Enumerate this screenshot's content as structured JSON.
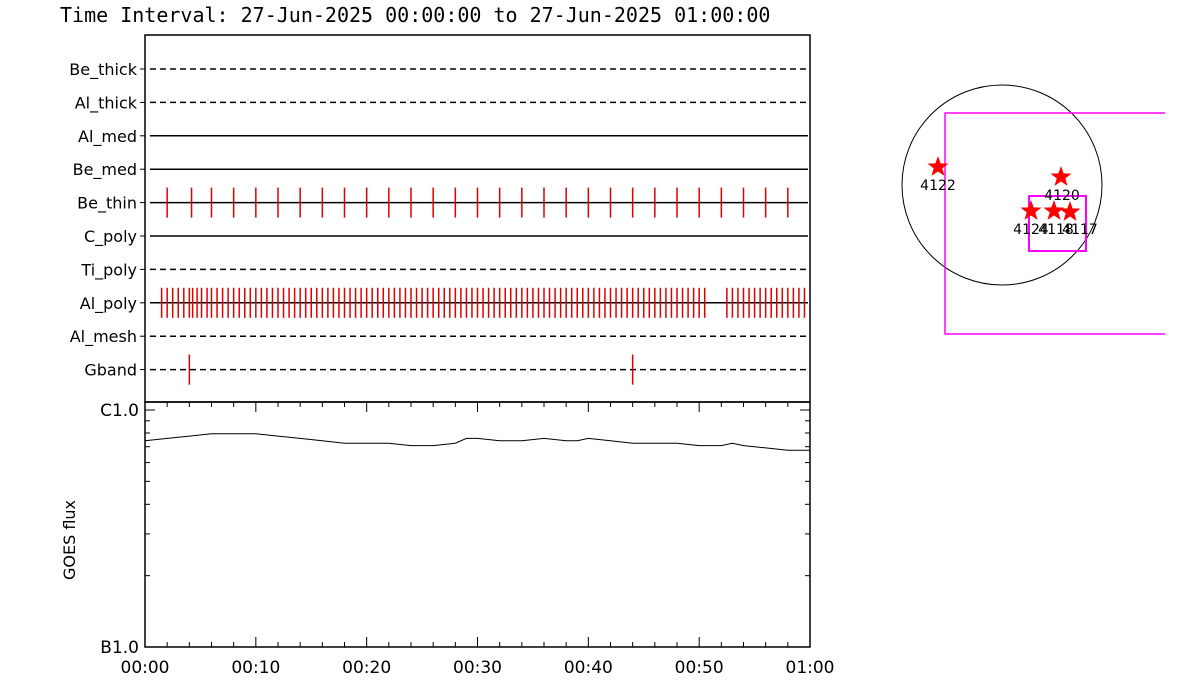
{
  "title": "Time Interval: 27-Jun-2025 00:00:00 to 27-Jun-2025 01:00:00",
  "chart_data": [
    {
      "type": "timeline",
      "x_range_minutes": [
        0,
        60
      ],
      "rows": [
        {
          "name": "Be_thick",
          "style": "dashed",
          "events_min": []
        },
        {
          "name": "Al_thick",
          "style": "dashed",
          "events_min": []
        },
        {
          "name": "Al_med",
          "style": "solid",
          "events_min": []
        },
        {
          "name": "Be_med",
          "style": "solid",
          "events_min": []
        },
        {
          "name": "Be_thin",
          "style": "solid",
          "events_min": [
            2.0,
            4.2,
            6.0,
            8.0,
            10.0,
            12.0,
            14.0,
            16.0,
            18.0,
            20.0,
            22.0,
            24.0,
            26.0,
            28.0,
            30.0,
            32.0,
            34.0,
            36.0,
            38.0,
            40.0,
            42.0,
            44.0,
            46.0,
            48.0,
            50.0,
            52.0,
            54.0,
            56.0,
            58.0
          ]
        },
        {
          "name": "C_poly",
          "style": "solid",
          "events_min": []
        },
        {
          "name": "Ti_poly",
          "style": "dashed",
          "events_min": []
        },
        {
          "name": "Al_poly",
          "style": "solid",
          "events_min": [
            1.5,
            2.0,
            2.5,
            3.0,
            3.5,
            4.0,
            4.3,
            4.7,
            5.1,
            5.6,
            6.0,
            6.5,
            7.0,
            7.5,
            8.0,
            8.5,
            9.0,
            9.5,
            10.0,
            10.5,
            11.0,
            11.5,
            12.0,
            12.5,
            13.0,
            13.5,
            14.0,
            14.5,
            15.0,
            15.5,
            16.0,
            16.5,
            17.0,
            17.5,
            18.0,
            18.5,
            19.0,
            19.5,
            20.0,
            20.5,
            21.0,
            21.5,
            22.0,
            22.5,
            23.0,
            23.5,
            24.0,
            24.5,
            25.0,
            25.5,
            26.0,
            26.5,
            27.0,
            27.5,
            28.0,
            28.5,
            29.0,
            29.5,
            30.0,
            30.5,
            31.0,
            31.5,
            32.0,
            32.5,
            33.0,
            33.5,
            34.0,
            34.5,
            35.0,
            35.5,
            36.0,
            36.5,
            37.0,
            37.5,
            38.0,
            38.5,
            39.0,
            39.5,
            40.0,
            40.5,
            41.0,
            41.5,
            42.0,
            42.5,
            43.0,
            43.5,
            44.0,
            44.5,
            45.0,
            45.5,
            46.0,
            46.5,
            47.0,
            47.5,
            48.0,
            48.5,
            49.0,
            49.5,
            50.0,
            50.5,
            52.5,
            53.0,
            53.5,
            54.0,
            54.5,
            55.0,
            55.5,
            56.0,
            56.5,
            57.0,
            57.5,
            58.0,
            58.5,
            59.0,
            59.5
          ]
        },
        {
          "name": "Al_mesh",
          "style": "dashed",
          "events_min": []
        },
        {
          "name": "Gband",
          "style": "dashed",
          "events_min": [
            4.0,
            44.0
          ]
        }
      ]
    },
    {
      "type": "line",
      "ylabel": "GOES flux",
      "y_scale": "log",
      "y_tick_labels": [
        "C1.0",
        "B1.0"
      ],
      "ylim": [
        "B1.0",
        "C1.0"
      ],
      "x_tick_labels": [
        "00:00",
        "00:10",
        "00:20",
        "00:30",
        "00:40",
        "00:50",
        "01:00"
      ],
      "x_minutes": [
        0,
        2,
        4,
        6,
        8,
        10,
        12,
        14,
        16,
        18,
        20,
        22,
        24,
        26,
        28,
        29,
        30,
        32,
        34,
        36,
        38,
        39,
        40,
        42,
        44,
        46,
        48,
        50,
        52,
        53,
        54,
        56,
        58,
        60
      ],
      "y_decades_above_B1": [
        0.87,
        0.88,
        0.89,
        0.9,
        0.9,
        0.9,
        0.89,
        0.88,
        0.87,
        0.86,
        0.86,
        0.86,
        0.85,
        0.85,
        0.86,
        0.88,
        0.88,
        0.87,
        0.87,
        0.88,
        0.87,
        0.87,
        0.88,
        0.87,
        0.86,
        0.86,
        0.86,
        0.85,
        0.85,
        0.86,
        0.85,
        0.84,
        0.83,
        0.83
      ]
    },
    {
      "type": "map",
      "regions": [
        {
          "label": "4122"
        },
        {
          "label": "4120"
        },
        {
          "label": "4124"
        },
        {
          "label": "4118"
        },
        {
          "label": "4117"
        }
      ]
    }
  ],
  "colors": {
    "event": "#e00000",
    "star": "#ff0000",
    "box": "#ff00ff",
    "axis": "#000000"
  }
}
